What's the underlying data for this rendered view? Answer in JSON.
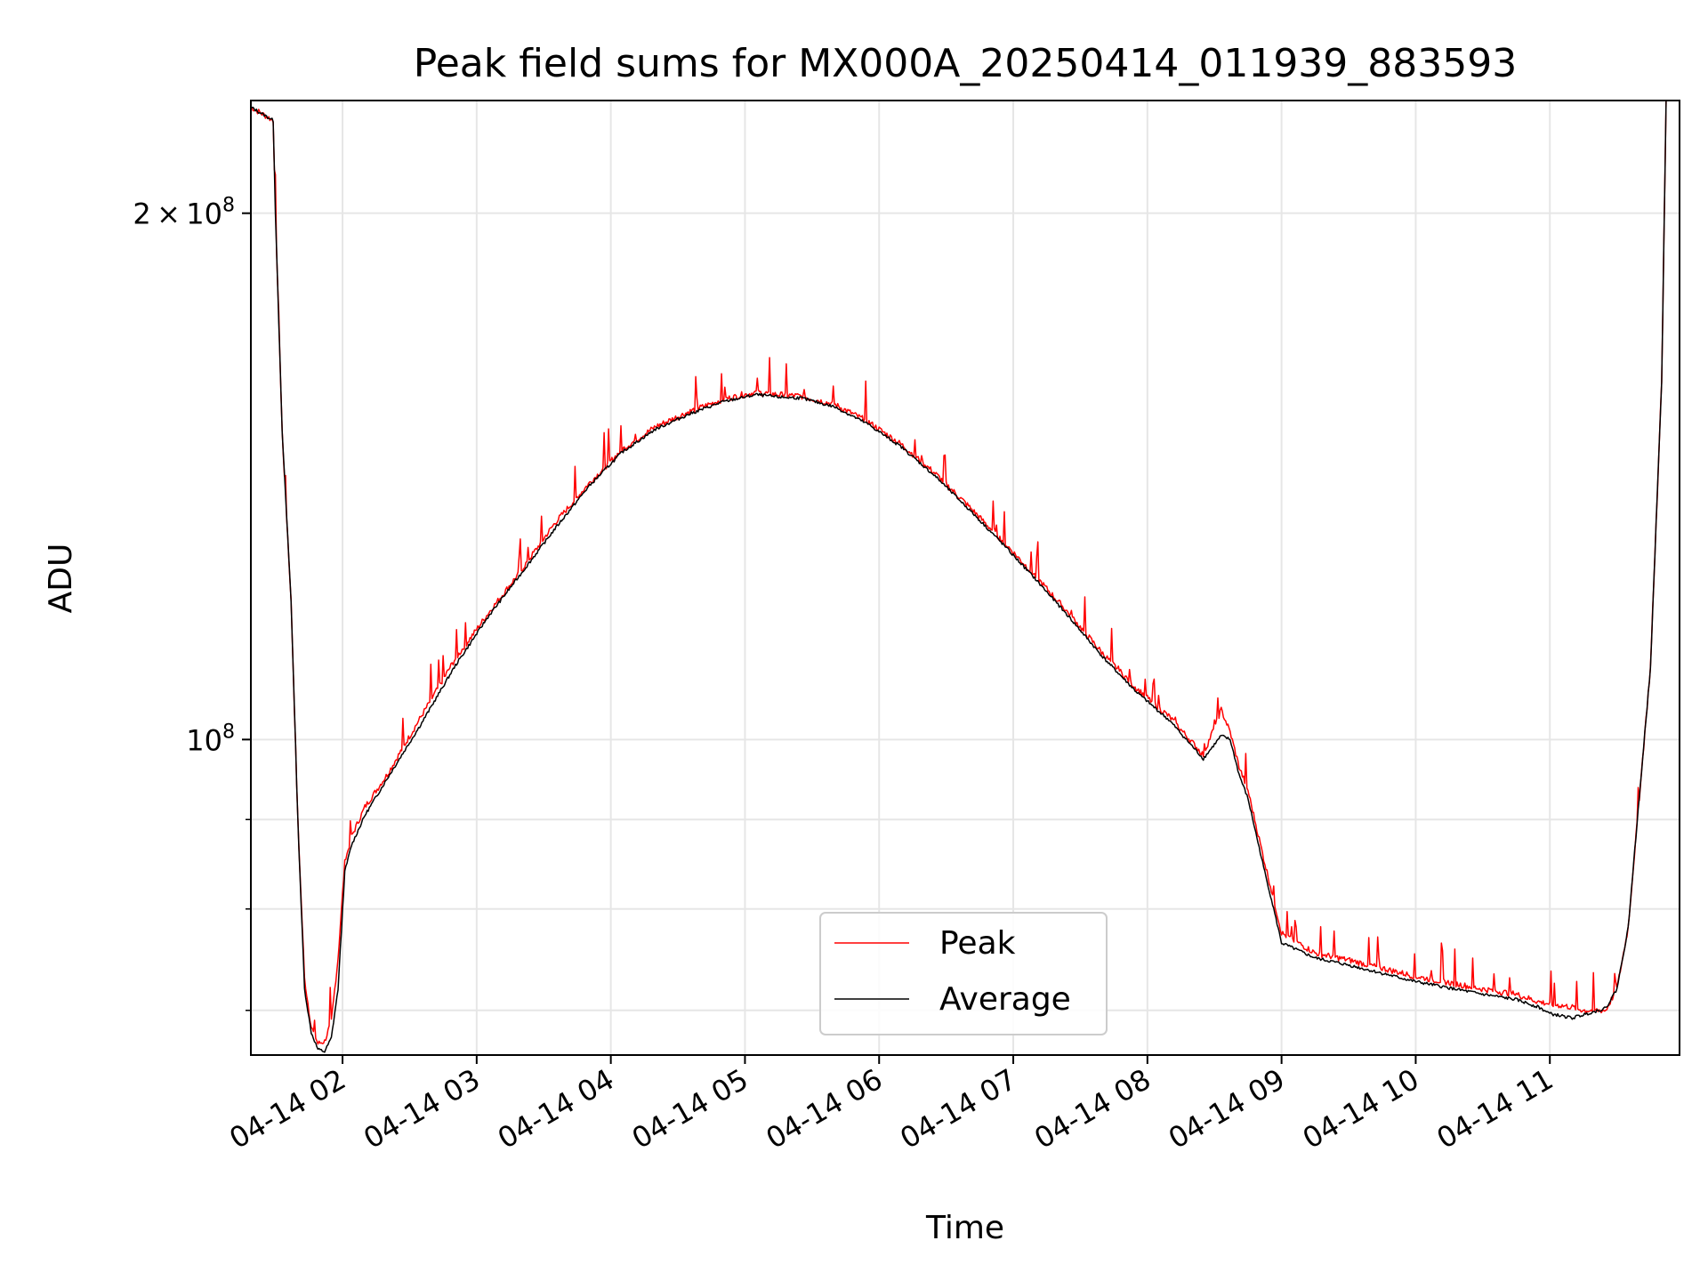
{
  "chart_data": {
    "type": "line",
    "title": "Peak field sums for MX000A_20250414_011939_883593",
    "xlabel": "Time",
    "ylabel": "ADU",
    "xlim": [
      "04-14 01:19",
      "04-14 11:58"
    ],
    "ylim": [
      66000000,
      232000000
    ],
    "yscale": "log",
    "grid": true,
    "legend_position": "lower center",
    "x_ticks": [
      "04-14 02",
      "04-14 03",
      "04-14 04",
      "04-14 05",
      "04-14 06",
      "04-14 07",
      "04-14 08",
      "04-14 09",
      "04-14 10",
      "04-14 11"
    ],
    "y_ticks": [
      {
        "value": 200000000,
        "mantissa": "2",
        "times": "×",
        "base": "10",
        "exp": "8"
      },
      {
        "value": 100000000,
        "mantissa": "",
        "times": "",
        "base": "10",
        "exp": "8"
      }
    ],
    "y_minor_ticks": [
      70000000,
      80000000,
      90000000
    ],
    "series": [
      {
        "name": "Peak",
        "color": "#ff0000",
        "x": [
          "01:19",
          "01:29",
          "01:30",
          "01:33",
          "01:37",
          "01:40",
          "01:43",
          "01:46",
          "01:49",
          "01:52",
          "01:55",
          "01:58",
          "02:01",
          "02:04",
          "02:10",
          "02:20",
          "02:35",
          "02:50",
          "03:05",
          "03:20",
          "03:35",
          "03:50",
          "04:05",
          "04:20",
          "04:35",
          "04:50",
          "05:05",
          "05:15",
          "05:25",
          "05:40",
          "05:55",
          "06:10",
          "06:25",
          "06:40",
          "06:55",
          "07:10",
          "07:25",
          "07:40",
          "07:55",
          "08:10",
          "08:25",
          "08:33",
          "08:37",
          "08:41",
          "08:45",
          "08:48",
          "08:52",
          "08:56",
          "09:00",
          "09:15",
          "09:30",
          "09:45",
          "10:00",
          "10:15",
          "10:30",
          "10:45",
          "10:55",
          "11:00",
          "11:10",
          "11:15",
          "11:25",
          "11:30",
          "11:35",
          "11:45",
          "11:50",
          "11:52"
        ],
        "y": [
          230000000,
          226000000,
          200000000,
          150000000,
          120000000,
          90000000,
          73000000,
          68500000,
          67000000,
          67200000,
          69000000,
          75000000,
          85000000,
          88000000,
          91500000,
          95500000,
          103000000,
          111000000,
          118000000,
          125000000,
          133000000,
          140000000,
          146500000,
          151000000,
          154000000,
          156500000,
          158000000,
          157500000,
          157200000,
          155500000,
          152000000,
          147500000,
          142000000,
          136000000,
          130000000,
          124000000,
          118000000,
          112000000,
          107000000,
          103000000,
          98000000,
          104000000,
          101000000,
          96500000,
          93500000,
          90000000,
          85500000,
          81500000,
          77500000,
          75500000,
          74800000,
          74000000,
          73200000,
          72600000,
          72000000,
          71500000,
          70800000,
          70600000,
          70300000,
          70000000,
          70000000,
          72000000,
          78000000,
          110000000,
          160000000,
          232000000
        ]
      },
      {
        "name": "Average",
        "color": "#000000",
        "x": [
          "01:19",
          "01:29",
          "01:30",
          "01:33",
          "01:37",
          "01:40",
          "01:43",
          "01:46",
          "01:49",
          "01:52",
          "01:55",
          "01:58",
          "02:01",
          "02:04",
          "02:10",
          "02:20",
          "02:35",
          "02:50",
          "03:05",
          "03:20",
          "03:35",
          "03:50",
          "04:05",
          "04:20",
          "04:35",
          "04:50",
          "05:05",
          "05:15",
          "05:25",
          "05:40",
          "05:55",
          "06:10",
          "06:25",
          "06:40",
          "06:55",
          "07:10",
          "07:25",
          "07:40",
          "07:55",
          "08:10",
          "08:25",
          "08:33",
          "08:37",
          "08:41",
          "08:45",
          "08:48",
          "08:52",
          "08:56",
          "09:00",
          "09:15",
          "09:30",
          "09:45",
          "10:00",
          "10:15",
          "10:30",
          "10:45",
          "10:55",
          "11:00",
          "11:10",
          "11:15",
          "11:25",
          "11:30",
          "11:35",
          "11:45",
          "11:50",
          "11:52"
        ],
        "y": [
          230000000,
          226000000,
          200000000,
          150000000,
          120000000,
          90000000,
          72000000,
          68000000,
          66500000,
          66300000,
          67500000,
          72000000,
          84000000,
          87000000,
          90500000,
          95000000,
          102000000,
          110000000,
          117500000,
          124500000,
          132000000,
          139500000,
          146000000,
          150500000,
          153500000,
          156000000,
          157500000,
          157000000,
          156800000,
          155000000,
          151500000,
          147000000,
          141500000,
          135500000,
          129500000,
          123500000,
          117500000,
          111500000,
          106500000,
          102500000,
          97500000,
          100500000,
          100000000,
          95500000,
          92500000,
          89000000,
          84500000,
          80500000,
          76500000,
          75000000,
          74300000,
          73500000,
          72700000,
          72100000,
          71500000,
          71000000,
          70300000,
          69700000,
          69300000,
          69600000,
          70200000,
          72000000,
          78000000,
          110000000,
          160000000,
          232000000
        ]
      }
    ]
  }
}
